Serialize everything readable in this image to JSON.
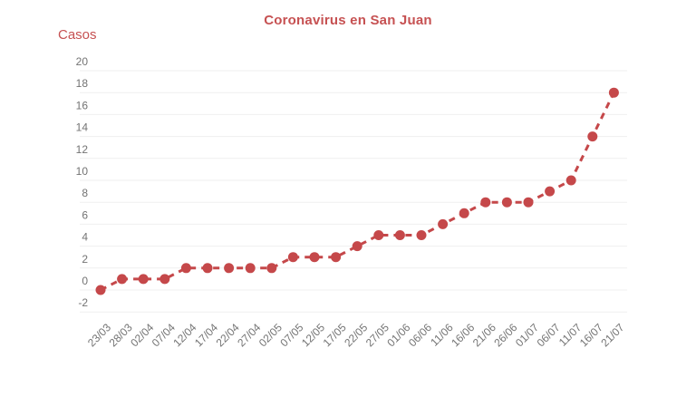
{
  "page": {
    "background": "#ffffff"
  },
  "chart_data": {
    "type": "line",
    "title": "Coronavirus en San Juan",
    "ylabel": "Casos",
    "xlabel": "",
    "categories": [
      "23/03",
      "28/03",
      "02/04",
      "07/04",
      "12/04",
      "17/04",
      "22/04",
      "27/04",
      "02/05",
      "07/05",
      "12/05",
      "17/05",
      "22/05",
      "27/05",
      "01/06",
      "06/06",
      "11/06",
      "16/06",
      "21/06",
      "26/06",
      "01/07",
      "06/07",
      "11/07",
      "16/07",
      "21/07"
    ],
    "series": [
      {
        "name": "Casos",
        "values": [
          0,
          1,
          1,
          1,
          2,
          2,
          2,
          2,
          2,
          3,
          3,
          3,
          4,
          5,
          5,
          5,
          6,
          7,
          8,
          8,
          8,
          9,
          10,
          14,
          18
        ]
      }
    ],
    "ylim": [
      -2,
      20
    ],
    "ytick_step": 2,
    "yticks": [
      -2,
      0,
      2,
      4,
      6,
      8,
      10,
      12,
      14,
      16,
      18,
      20
    ],
    "grid": "horizontal",
    "legend": "none",
    "line_style": "dashed",
    "marker": "circle",
    "x_label_rotation": -45,
    "colors": {
      "line": "#c5484a",
      "marker": "#c5484a",
      "title": "#c65152",
      "axis_title": "#c65152",
      "tick_text": "#737373",
      "gridline": "#efefef"
    }
  }
}
